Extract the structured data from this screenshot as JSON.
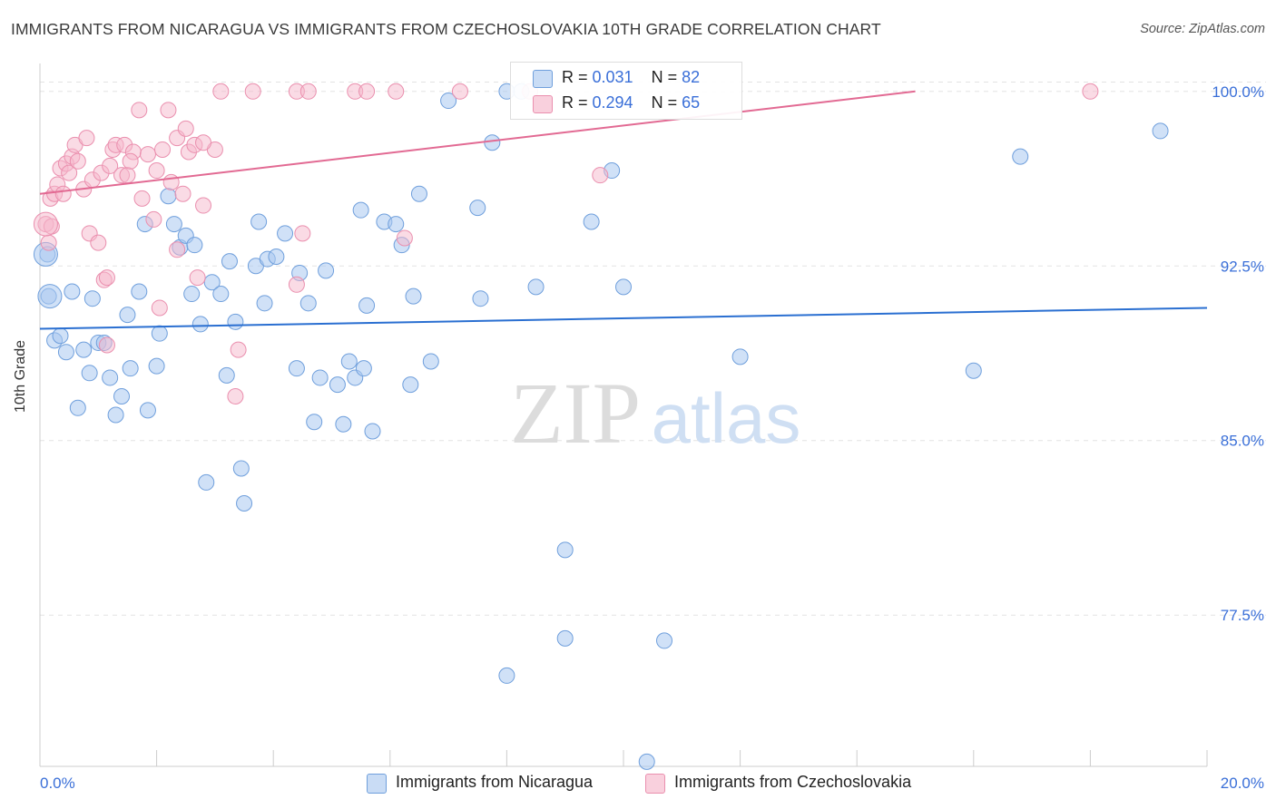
{
  "header": {
    "title": "IMMIGRANTS FROM NICARAGUA VS IMMIGRANTS FROM CZECHOSLOVAKIA 10TH GRADE CORRELATION CHART",
    "source": "Source: ZipAtlas.com"
  },
  "watermark": {
    "zip": "ZIP",
    "atlas": "atlas"
  },
  "legend": {
    "rows": [
      {
        "r_label": "R = ",
        "r_value": "0.031",
        "n_label": "N = ",
        "n_value": "82",
        "color": "#a9c8f0"
      },
      {
        "r_label": "R = ",
        "r_value": "0.294",
        "n_label": "N = ",
        "n_value": "65",
        "color": "#f6b8cb"
      }
    ]
  },
  "bottom_legend": [
    {
      "label": "Immigrants from Nicaragua",
      "color": "#a9c8f0"
    },
    {
      "label": "Immigrants from Czechoslovakia",
      "color": "#f6b8cb"
    }
  ],
  "chart_data": {
    "type": "scatter",
    "title": "IMMIGRANTS FROM NICARAGUA VS IMMIGRANTS FROM CZECHOSLOVAKIA 10TH GRADE CORRELATION CHART",
    "ylabel": "10th Grade",
    "xlabel": "",
    "xlim": [
      0,
      20
    ],
    "ylim": [
      71.0,
      101.2
    ],
    "x_tick_labels": [
      "0.0%",
      "20.0%"
    ],
    "y_ticks": [
      77.5,
      85.0,
      92.5,
      100.0
    ],
    "y_tick_labels": [
      "77.5%",
      "85.0%",
      "92.5%",
      "100.0%"
    ],
    "grid": true,
    "legend_position": "top-center",
    "series": [
      {
        "name": "Immigrants from Nicaragua",
        "color": "#a9c8f0",
        "stroke": "#6f9fdc",
        "trend": {
          "x": [
            0,
            20
          ],
          "y": [
            89.8,
            90.7
          ],
          "color": "#2a6fd1"
        },
        "points": [
          [
            0.13,
            93.0
          ],
          [
            0.15,
            91.2
          ],
          [
            0.25,
            89.3
          ],
          [
            0.35,
            89.5
          ],
          [
            0.45,
            88.8
          ],
          [
            0.55,
            91.4
          ],
          [
            0.65,
            86.4
          ],
          [
            0.75,
            88.9
          ],
          [
            0.85,
            87.9
          ],
          [
            0.9,
            91.1
          ],
          [
            1.0,
            89.2
          ],
          [
            1.1,
            89.2
          ],
          [
            1.2,
            87.7
          ],
          [
            1.3,
            86.1
          ],
          [
            1.4,
            86.9
          ],
          [
            1.5,
            90.4
          ],
          [
            1.55,
            88.1
          ],
          [
            1.7,
            91.4
          ],
          [
            1.8,
            94.3
          ],
          [
            1.85,
            86.3
          ],
          [
            2.0,
            88.2
          ],
          [
            2.05,
            89.6
          ],
          [
            2.2,
            95.5
          ],
          [
            2.3,
            94.3
          ],
          [
            2.4,
            93.3
          ],
          [
            2.5,
            93.8
          ],
          [
            2.6,
            91.3
          ],
          [
            2.65,
            93.4
          ],
          [
            2.75,
            90.0
          ],
          [
            2.85,
            83.2
          ],
          [
            2.95,
            91.8
          ],
          [
            3.1,
            91.3
          ],
          [
            3.2,
            87.8
          ],
          [
            3.25,
            92.7
          ],
          [
            3.35,
            90.1
          ],
          [
            3.45,
            83.8
          ],
          [
            3.5,
            82.3
          ],
          [
            3.7,
            92.5
          ],
          [
            3.75,
            94.4
          ],
          [
            3.85,
            90.9
          ],
          [
            3.9,
            92.8
          ],
          [
            4.05,
            92.9
          ],
          [
            4.2,
            93.9
          ],
          [
            4.4,
            88.1
          ],
          [
            4.45,
            92.2
          ],
          [
            4.6,
            90.9
          ],
          [
            4.7,
            85.8
          ],
          [
            4.8,
            87.7
          ],
          [
            4.9,
            92.3
          ],
          [
            5.1,
            87.4
          ],
          [
            5.2,
            85.7
          ],
          [
            5.3,
            88.4
          ],
          [
            5.4,
            87.7
          ],
          [
            5.5,
            94.9
          ],
          [
            5.55,
            88.1
          ],
          [
            5.6,
            90.8
          ],
          [
            5.7,
            85.4
          ],
          [
            5.9,
            94.4
          ],
          [
            6.1,
            94.3
          ],
          [
            6.2,
            93.4
          ],
          [
            6.35,
            87.4
          ],
          [
            6.4,
            91.2
          ],
          [
            6.5,
            95.6
          ],
          [
            6.7,
            88.4
          ],
          [
            7.0,
            99.6
          ],
          [
            7.5,
            95.0
          ],
          [
            7.55,
            91.1
          ],
          [
            7.75,
            97.8
          ],
          [
            8.0,
            100.0
          ],
          [
            8.25,
            100.0
          ],
          [
            8.5,
            91.6
          ],
          [
            9.0,
            80.3
          ],
          [
            9.0,
            76.5
          ],
          [
            9.45,
            94.4
          ],
          [
            9.8,
            96.6
          ],
          [
            10.0,
            91.6
          ],
          [
            10.4,
            71.2
          ],
          [
            10.7,
            76.4
          ],
          [
            8.0,
            74.9
          ],
          [
            12.0,
            88.6
          ],
          [
            16.0,
            88.0
          ],
          [
            16.8,
            97.2
          ],
          [
            19.2,
            98.3
          ]
        ],
        "large_points": [
          [
            0.1,
            93.0
          ],
          [
            0.17,
            91.2
          ]
        ]
      },
      {
        "name": "Immigrants from Czechoslovakia",
        "color": "#f6b8cb",
        "stroke": "#ea8fae",
        "trend": {
          "x": [
            0,
            15
          ],
          "y": [
            95.6,
            100.0
          ],
          "color": "#e26a93"
        },
        "points": [
          [
            0.1,
            94.3
          ],
          [
            0.15,
            93.5
          ],
          [
            0.18,
            95.4
          ],
          [
            0.25,
            95.6
          ],
          [
            0.3,
            96.0
          ],
          [
            0.35,
            96.7
          ],
          [
            0.4,
            95.6
          ],
          [
            0.45,
            96.9
          ],
          [
            0.5,
            96.5
          ],
          [
            0.55,
            97.2
          ],
          [
            0.6,
            97.7
          ],
          [
            0.65,
            97.0
          ],
          [
            0.75,
            95.8
          ],
          [
            0.8,
            98.0
          ],
          [
            0.85,
            93.9
          ],
          [
            0.9,
            96.2
          ],
          [
            1.0,
            93.5
          ],
          [
            1.05,
            96.5
          ],
          [
            1.1,
            91.9
          ],
          [
            1.15,
            92.0
          ],
          [
            1.2,
            96.8
          ],
          [
            1.25,
            97.5
          ],
          [
            1.3,
            97.7
          ],
          [
            1.4,
            96.4
          ],
          [
            1.45,
            97.7
          ],
          [
            1.5,
            96.4
          ],
          [
            1.6,
            97.4
          ],
          [
            1.7,
            99.2
          ],
          [
            1.75,
            95.4
          ],
          [
            1.85,
            97.3
          ],
          [
            1.95,
            94.5
          ],
          [
            2.0,
            96.6
          ],
          [
            2.05,
            90.7
          ],
          [
            2.1,
            97.5
          ],
          [
            2.2,
            99.2
          ],
          [
            2.25,
            96.1
          ],
          [
            2.35,
            98.0
          ],
          [
            2.45,
            95.6
          ],
          [
            2.5,
            98.4
          ],
          [
            2.55,
            97.4
          ],
          [
            2.65,
            97.7
          ],
          [
            2.7,
            92.0
          ],
          [
            2.8,
            95.1
          ],
          [
            3.0,
            97.5
          ],
          [
            3.35,
            86.9
          ],
          [
            3.4,
            88.9
          ],
          [
            4.4,
            91.7
          ],
          [
            4.5,
            93.9
          ],
          [
            3.1,
            100.0
          ],
          [
            3.65,
            100.0
          ],
          [
            4.4,
            100.0
          ],
          [
            4.6,
            100.0
          ],
          [
            5.4,
            100.0
          ],
          [
            5.6,
            100.0
          ],
          [
            6.1,
            100.0
          ],
          [
            6.25,
            93.7
          ],
          [
            7.2,
            100.0
          ],
          [
            8.4,
            100.0
          ],
          [
            9.6,
            96.4
          ],
          [
            18.0,
            100.0
          ],
          [
            0.2,
            94.2
          ],
          [
            1.15,
            89.1
          ],
          [
            2.35,
            93.2
          ],
          [
            2.8,
            97.8
          ],
          [
            1.55,
            97.0
          ]
        ],
        "large_points": [
          [
            0.1,
            94.3
          ]
        ]
      }
    ]
  }
}
